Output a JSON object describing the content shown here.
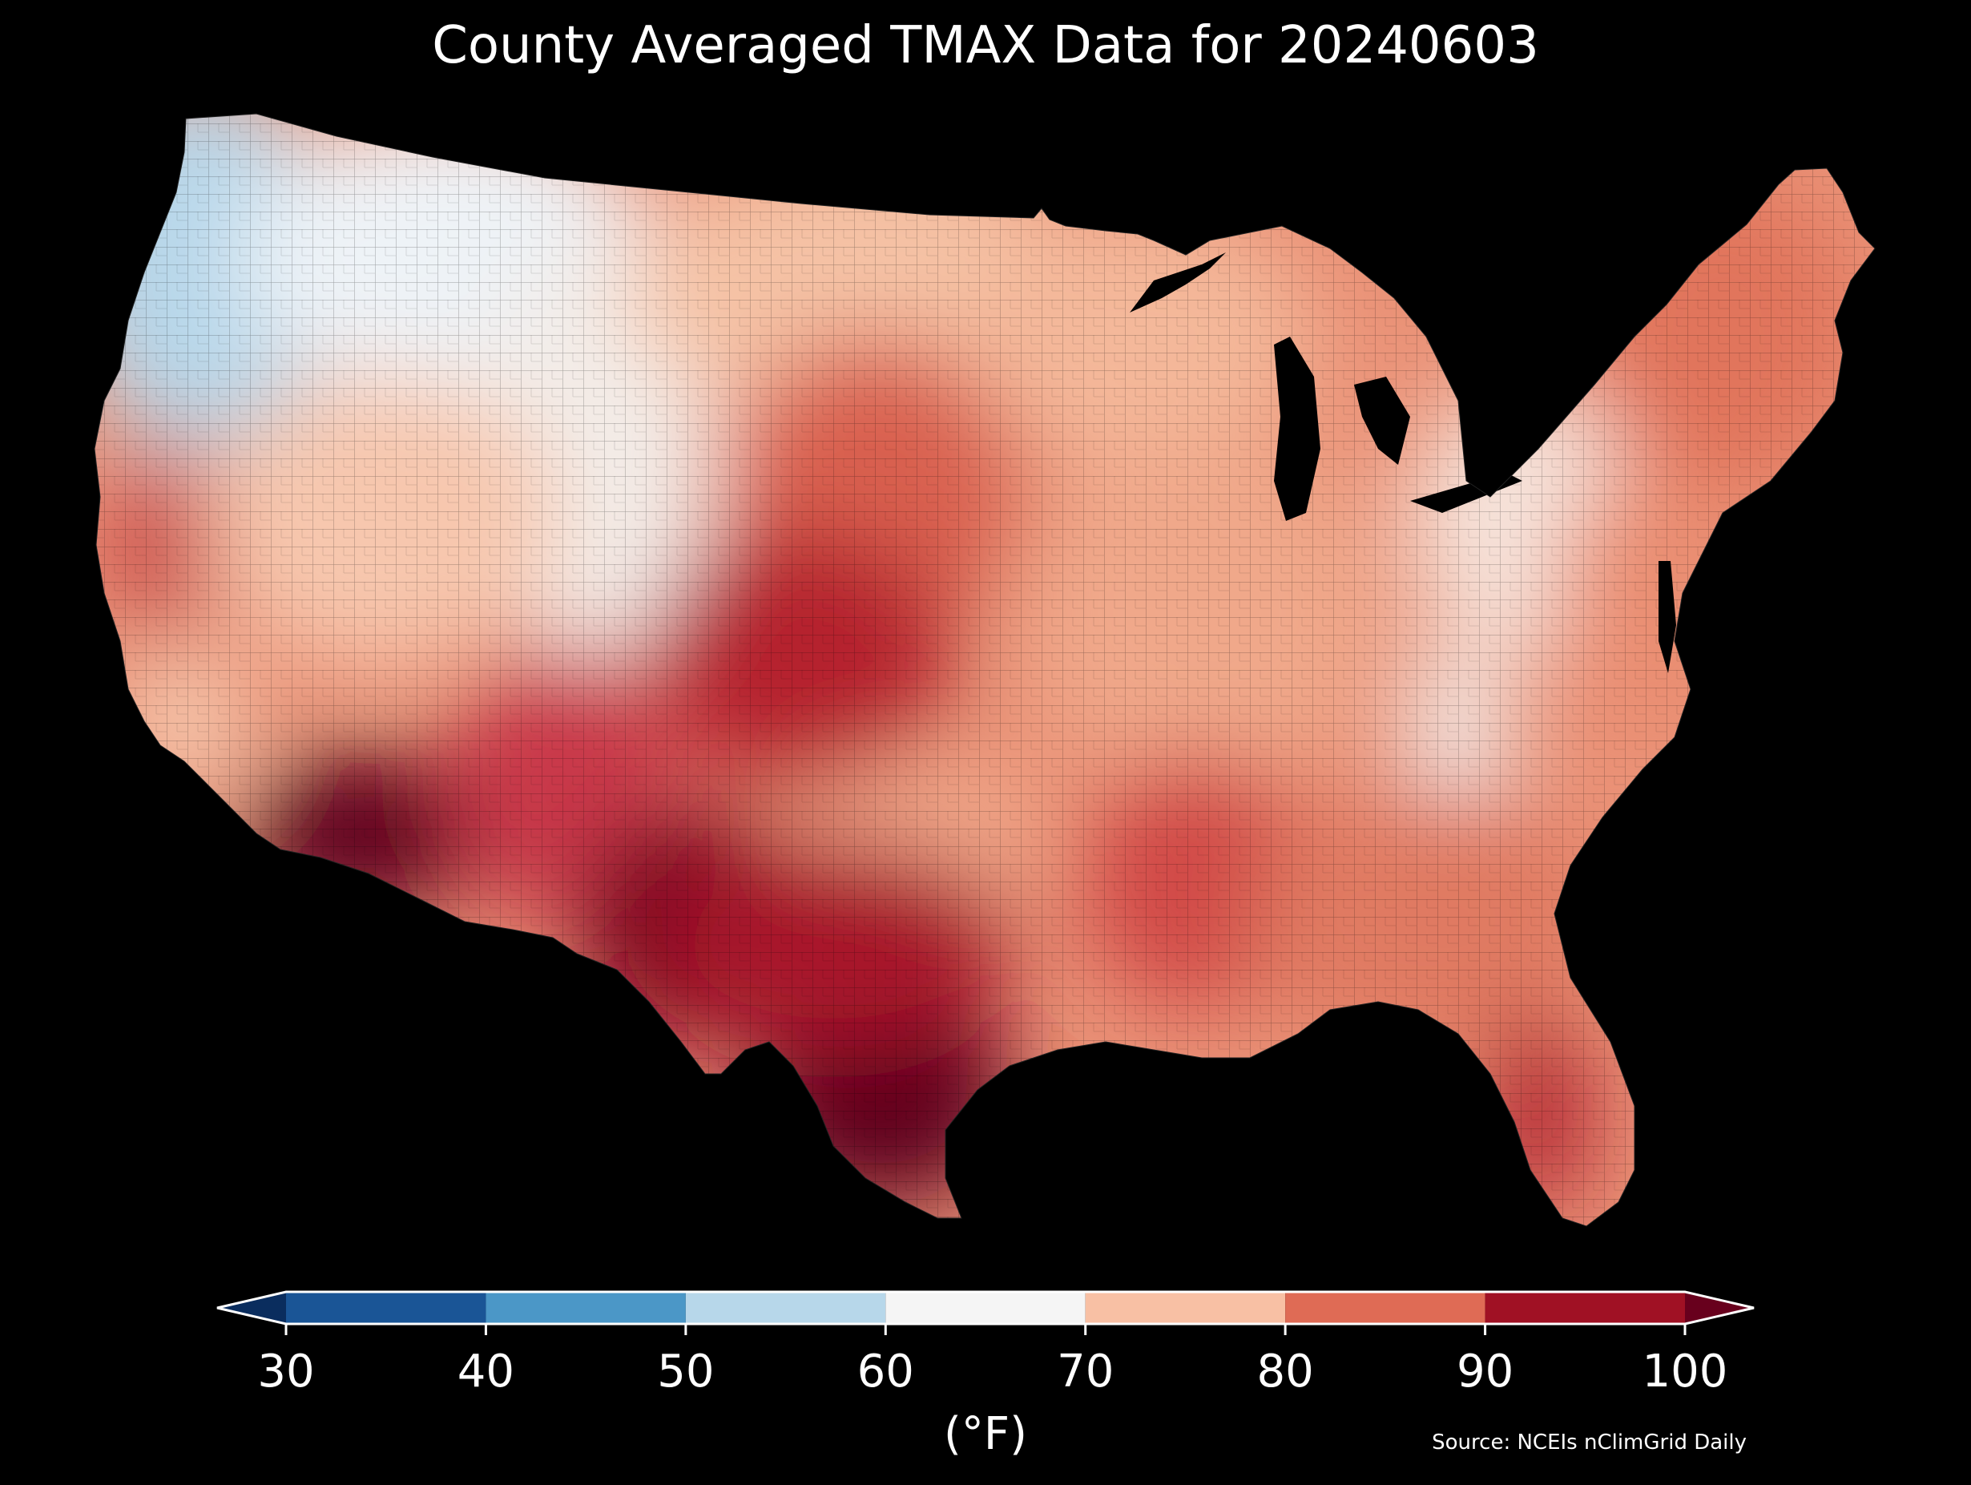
{
  "title": "County Averaged TMAX Data for 20240603",
  "source": "Source: NCEIs nClimGrid Daily",
  "colorbar": {
    "unit_label": "(°F)",
    "ticks": [
      "30",
      "40",
      "50",
      "60",
      "70",
      "80",
      "90",
      "100"
    ],
    "bins": [
      {
        "from": 30,
        "to": 40,
        "color": "#1a5596"
      },
      {
        "from": 40,
        "to": 50,
        "color": "#4b97c7"
      },
      {
        "from": 50,
        "to": 60,
        "color": "#b7d7ea"
      },
      {
        "from": 60,
        "to": 70,
        "color": "#f5f5f5"
      },
      {
        "from": 70,
        "to": 80,
        "color": "#f8c0a4"
      },
      {
        "from": 80,
        "to": 90,
        "color": "#df6b55"
      },
      {
        "from": 90,
        "to": 100,
        "color": "#a01124"
      }
    ],
    "under_color": "#0a2d5e",
    "over_color": "#68001d",
    "extend": "both"
  },
  "map": {
    "region": "Contiguous United States counties",
    "background": "#000000",
    "water_color": "#000000",
    "regions": [
      {
        "id": "pacific-northwest",
        "approx_tmax_f": 55,
        "color": "#cbe1ef"
      },
      {
        "id": "northern-rockies",
        "approx_tmax_f": 62,
        "color": "#eef3f7"
      },
      {
        "id": "great-basin",
        "approx_tmax_f": 74,
        "color": "#f7cdb6"
      },
      {
        "id": "northern-plains",
        "approx_tmax_f": 76,
        "color": "#f5c2a5"
      },
      {
        "id": "central-plains",
        "approx_tmax_f": 84,
        "color": "#e0705a"
      },
      {
        "id": "southwest-desert",
        "approx_tmax_f": 100,
        "color": "#6a0020"
      },
      {
        "id": "texas",
        "approx_tmax_f": 95,
        "color": "#a8172a"
      },
      {
        "id": "midwest",
        "approx_tmax_f": 78,
        "color": "#f0a98a"
      },
      {
        "id": "appalachians",
        "approx_tmax_f": 66,
        "color": "#f4ece8"
      },
      {
        "id": "southeast",
        "approx_tmax_f": 85,
        "color": "#e07a62"
      },
      {
        "id": "florida",
        "approx_tmax_f": 92,
        "color": "#b52a34"
      },
      {
        "id": "northeast",
        "approx_tmax_f": 80,
        "color": "#e58266"
      }
    ]
  }
}
